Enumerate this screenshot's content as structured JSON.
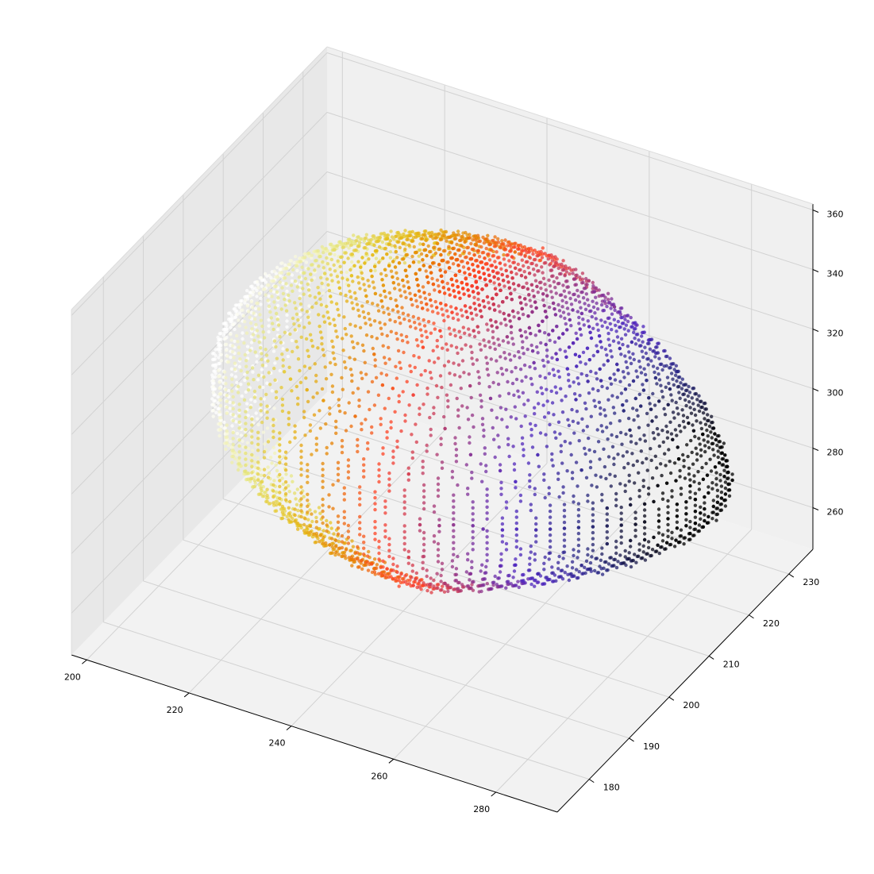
{
  "chart_data": {
    "type": "scatter",
    "dimensions": 3,
    "title": "",
    "xlabel": "",
    "ylabel": "",
    "zlabel": "",
    "xlim": [
      197,
      292
    ],
    "ylim": [
      172,
      236
    ],
    "zlim": [
      246,
      362
    ],
    "x_ticks": [
      "200",
      "220",
      "240",
      "260",
      "280"
    ],
    "y_ticks": [
      "180",
      "190",
      "200",
      "210",
      "220",
      "230"
    ],
    "z_ticks": [
      "260",
      "280",
      "300",
      "320",
      "340",
      "360"
    ],
    "grid": true,
    "legend": "none",
    "colormap": "CMRmap (color encodes x)",
    "point_cloud": {
      "shape": "voxelized ellipsoidal surface",
      "x_range": [
        205,
        290
      ],
      "y_range": [
        185,
        230
      ],
      "z_range": [
        262,
        352
      ],
      "center": [
        248,
        208,
        304
      ],
      "semi_axes": [
        48,
        24,
        46
      ],
      "marker_size_px": 2.2,
      "alpha": 0.75
    },
    "colors": {
      "pane_back": "#f0f0f0",
      "pane_side": "#e8e8e8",
      "pane_floor": "#f2f2f2",
      "grid": "#d2d2d2",
      "axis": "#000000"
    }
  }
}
